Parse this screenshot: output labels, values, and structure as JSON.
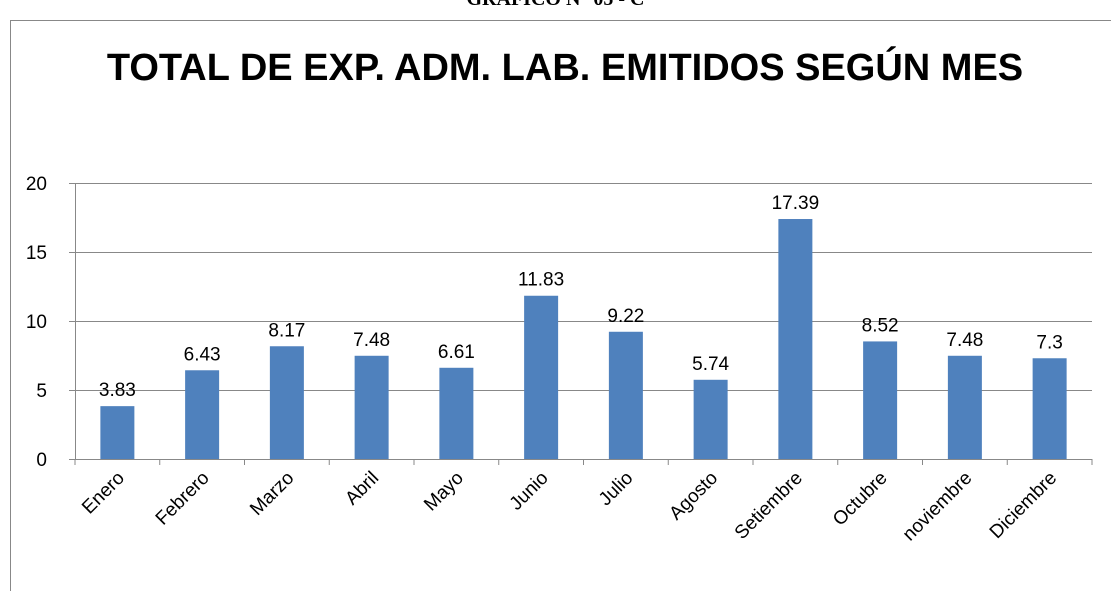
{
  "heading": "GRAFICO N° 05 - C",
  "chart_data": {
    "type": "bar",
    "title": "TOTAL DE EXP. ADM. LAB. EMITIDOS SEGÚN MES",
    "categories": [
      "Enero",
      "Febrero",
      "Marzo",
      "Abril",
      "Mayo",
      "Junio",
      "Julio",
      "Agosto",
      "Setiembre",
      "Octubre",
      "noviembre",
      "Diciembre"
    ],
    "values": [
      3.83,
      6.43,
      8.17,
      7.48,
      6.61,
      11.83,
      9.22,
      5.74,
      17.39,
      8.52,
      7.48,
      7.3
    ],
    "color": "#4f81bd",
    "ylim": [
      0,
      20
    ],
    "yticks": [
      0,
      5,
      10,
      15,
      20
    ],
    "grid": true
  }
}
